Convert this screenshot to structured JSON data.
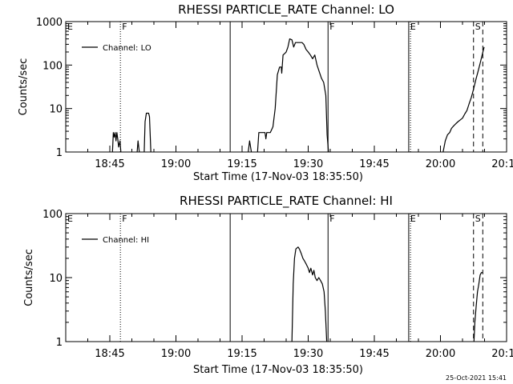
{
  "timestamp": "25-Oct-2021 15:41",
  "chart_data": [
    {
      "type": "line",
      "title": "RHESSI PARTICLE_RATE Channel: LO",
      "xlabel": "Start Time (17-Nov-03 18:35:50)",
      "ylabel": "Counts/sec",
      "ylog": true,
      "ylim": [
        1,
        1000
      ],
      "xlim_min": [
        0,
        100
      ],
      "x_ticks": [
        {
          "min": 10,
          "label": "18:45"
        },
        {
          "min": 25,
          "label": "19:00"
        },
        {
          "min": 40,
          "label": "19:15"
        },
        {
          "min": 55,
          "label": "19:30"
        },
        {
          "min": 70,
          "label": "19:45"
        },
        {
          "min": 85,
          "label": "20:00"
        },
        {
          "min": 100,
          "label": "20:15"
        }
      ],
      "y_ticks": [
        {
          "v": 1,
          "label": "1"
        },
        {
          "v": 10,
          "label": "10"
        },
        {
          "v": 100,
          "label": "100"
        },
        {
          "v": 1000,
          "label": "1000"
        }
      ],
      "legend": {
        "label": "Channel: LO",
        "placement": "top-left"
      },
      "markers": [
        {
          "min": 0.0,
          "label": "E",
          "style": "none"
        },
        {
          "min": 12.4,
          "label": "F",
          "style": "dotted"
        },
        {
          "min": 37.3,
          "label": "",
          "style": "solid"
        },
        {
          "min": 59.5,
          "label": "F",
          "style": "solid"
        },
        {
          "min": 77.8,
          "label": "E",
          "style": "solid"
        },
        {
          "min": 78.2,
          "label": "",
          "style": "dotted"
        },
        {
          "min": 92.5,
          "label": "S",
          "style": "dashed"
        },
        {
          "min": 94.6,
          "label": "",
          "style": "dashed"
        }
      ],
      "series": [
        {
          "segments": [
            [
              [
                10.6,
                1
              ],
              [
                10.8,
                2.8
              ],
              [
                11.0,
                2.2
              ],
              [
                11.2,
                2.8
              ],
              [
                11.4,
                1.8
              ],
              [
                11.6,
                2.8
              ],
              [
                11.8,
                2.0
              ],
              [
                12.0,
                1.3
              ],
              [
                12.3,
                1.8
              ],
              [
                12.5,
                1
              ]
            ],
            [
              [
                16.2,
                1
              ],
              [
                16.4,
                1.8
              ],
              [
                16.7,
                1
              ]
            ],
            [
              [
                17.8,
                1
              ],
              [
                18.0,
                5.0
              ],
              [
                18.3,
                7.8
              ],
              [
                18.8,
                7.8
              ],
              [
                19.0,
                6.5
              ],
              [
                19.3,
                1
              ]
            ],
            [
              [
                41.4,
                1
              ],
              [
                41.7,
                1.8
              ],
              [
                42.1,
                1
              ]
            ],
            [
              [
                43.5,
                1
              ],
              [
                43.8,
                2.8
              ],
              [
                44.5,
                2.8
              ],
              [
                45.2,
                2.8
              ],
              [
                45.4,
                2.0
              ],
              [
                45.6,
                2.8
              ],
              [
                46.4,
                2.8
              ],
              [
                47.0,
                3.8
              ],
              [
                47.5,
                10
              ],
              [
                48.0,
                60
              ],
              [
                48.5,
                90
              ],
              [
                48.9,
                90
              ],
              [
                49.0,
                65
              ],
              [
                49.3,
                170
              ],
              [
                49.8,
                190
              ],
              [
                50.0,
                200
              ],
              [
                50.4,
                260
              ],
              [
                50.8,
                400
              ],
              [
                51.3,
                380
              ],
              [
                51.7,
                260
              ],
              [
                52.1,
                330
              ],
              [
                53.0,
                330
              ],
              [
                53.6,
                330
              ],
              [
                54.0,
                300
              ],
              [
                54.5,
                230
              ],
              [
                55.0,
                200
              ],
              [
                55.5,
                170
              ],
              [
                56.0,
                140
              ],
              [
                56.5,
                170
              ],
              [
                57.0,
                100
              ],
              [
                57.5,
                70
              ],
              [
                58.0,
                50
              ],
              [
                58.5,
                40
              ],
              [
                59.0,
                20
              ],
              [
                59.3,
                2.5
              ],
              [
                59.6,
                1
              ]
            ],
            [
              [
                85.6,
                1
              ],
              [
                86.1,
                1.8
              ],
              [
                86.6,
                2.5
              ],
              [
                87.1,
                2.8
              ],
              [
                87.5,
                3.5
              ],
              [
                88.0,
                4.0
              ],
              [
                88.5,
                4.5
              ],
              [
                89.0,
                5.0
              ],
              [
                89.5,
                5.5
              ],
              [
                90.0,
                6.0
              ],
              [
                90.5,
                7.5
              ],
              [
                91.0,
                9.0
              ],
              [
                91.5,
                13
              ],
              [
                92.0,
                18
              ],
              [
                92.5,
                28
              ],
              [
                93.0,
                45
              ],
              [
                93.5,
                70
              ],
              [
                94.0,
                110
              ],
              [
                94.5,
                180
              ],
              [
                94.9,
                260
              ]
            ]
          ]
        }
      ]
    },
    {
      "type": "line",
      "title": "RHESSI PARTICLE_RATE Channel: HI",
      "xlabel": "Start Time (17-Nov-03 18:35:50)",
      "ylabel": "Counts/sec",
      "ylog": true,
      "ylim": [
        1,
        100
      ],
      "xlim_min": [
        0,
        100
      ],
      "x_ticks": [
        {
          "min": 10,
          "label": "18:45"
        },
        {
          "min": 25,
          "label": "19:00"
        },
        {
          "min": 40,
          "label": "19:15"
        },
        {
          "min": 55,
          "label": "19:30"
        },
        {
          "min": 70,
          "label": "19:45"
        },
        {
          "min": 85,
          "label": "20:00"
        },
        {
          "min": 100,
          "label": "20:15"
        }
      ],
      "y_ticks": [
        {
          "v": 1,
          "label": "1"
        },
        {
          "v": 10,
          "label": "10"
        },
        {
          "v": 100,
          "label": "100"
        }
      ],
      "legend": {
        "label": "Channel: HI",
        "placement": "top-left"
      },
      "markers": [
        {
          "min": 0.0,
          "label": "E",
          "style": "none"
        },
        {
          "min": 12.4,
          "label": "F",
          "style": "dotted"
        },
        {
          "min": 37.3,
          "label": "",
          "style": "solid"
        },
        {
          "min": 59.5,
          "label": "F",
          "style": "solid"
        },
        {
          "min": 77.8,
          "label": "E",
          "style": "solid"
        },
        {
          "min": 78.2,
          "label": "",
          "style": "dotted"
        },
        {
          "min": 92.5,
          "label": "S",
          "style": "dashed"
        },
        {
          "min": 94.6,
          "label": "",
          "style": "dashed"
        }
      ],
      "series": [
        {
          "segments": [
            [
              [
                51.3,
                1
              ],
              [
                51.6,
                8
              ],
              [
                51.9,
                20
              ],
              [
                52.2,
                28
              ],
              [
                52.7,
                30
              ],
              [
                53.0,
                28
              ],
              [
                53.4,
                24
              ],
              [
                53.8,
                20
              ],
              [
                54.2,
                18
              ],
              [
                54.6,
                16
              ],
              [
                55.0,
                14
              ],
              [
                55.3,
                12
              ],
              [
                55.6,
                14
              ],
              [
                56.0,
                11
              ],
              [
                56.3,
                13
              ],
              [
                56.6,
                10
              ],
              [
                57.0,
                9
              ],
              [
                57.4,
                10
              ],
              [
                57.8,
                9
              ],
              [
                58.2,
                8
              ],
              [
                58.6,
                6
              ],
              [
                58.9,
                3
              ],
              [
                59.2,
                1
              ]
            ],
            [
              [
                92.6,
                1
              ],
              [
                92.8,
                2
              ],
              [
                93.1,
                3.5
              ],
              [
                93.4,
                6
              ],
              [
                93.7,
                8
              ],
              [
                94.0,
                11
              ],
              [
                94.3,
                12
              ],
              [
                94.6,
                12
              ]
            ]
          ]
        }
      ]
    }
  ]
}
